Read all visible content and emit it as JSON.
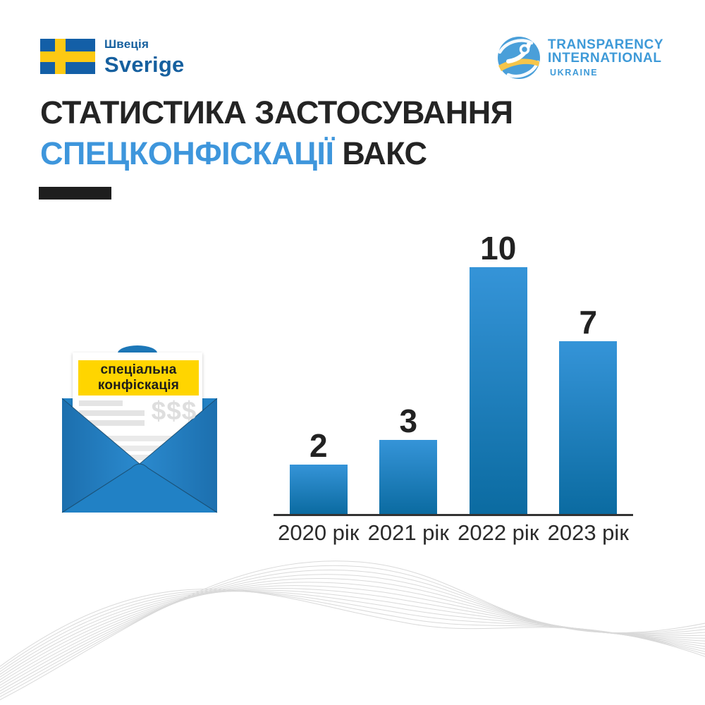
{
  "branding": {
    "sweden": {
      "flag_icon": "sweden-flag-icon",
      "label_native": "Швеція",
      "label_latin": "Sverige"
    },
    "transparency": {
      "logo_icon": "globe-figure-icon",
      "line1": "TRANSPARENCY",
      "line2": "INTERNATIONAL",
      "line3": "UKRAINE"
    }
  },
  "title": {
    "line1": "СТАТИСТИКА ЗАСТОСУВАННЯ",
    "highlight": "СПЕЦКОНФІСКАЦІЇ",
    "suffix": "ВАКС"
  },
  "envelope": {
    "banner_line1": "спеціальна",
    "banner_line2": "конфіскація",
    "dollar_text": "$$$"
  },
  "chart_data": {
    "type": "bar",
    "categories": [
      "2020 рік",
      "2021 рік",
      "2022 рік",
      "2023 рік"
    ],
    "values": [
      2,
      3,
      10,
      7
    ],
    "value_labels": [
      "2",
      "3",
      "10",
      "7"
    ],
    "title": "СТАТИСТИКА ЗАСТОСУВАННЯ СПЕЦКОНФІСКАЦІЇ ВАКС",
    "xlabel": "",
    "ylabel": "",
    "ylim": [
      0,
      10
    ],
    "grid": false,
    "legend": "none",
    "bar_color_top": "#3594d8",
    "bar_color_bottom": "#0b6ba1"
  },
  "colors": {
    "background": "#ffffff",
    "title_dark": "#242424",
    "title_blue": "#3e96dc",
    "underline_black": "#1e1e1e",
    "flag_blue": "#135fa7",
    "flag_yellow": "#fdc913",
    "sweden_text_blue": "#16609f",
    "ti_text_blue": "#3e9ad8",
    "ti_globe_blue": "#4a9fd9",
    "ti_globe_yellow": "#f6c54a",
    "envelope_blue": "#2181c5",
    "envelope_fold_dark": "#1a4a6b",
    "banner_yellow": "#ffd500",
    "banner_text": "#1d1d1b",
    "document_line_gray": "#e4e4e4",
    "dollars_gray": "#dedede",
    "axis_dark": "#333333",
    "wave_gray": "#d9d9d9"
  }
}
